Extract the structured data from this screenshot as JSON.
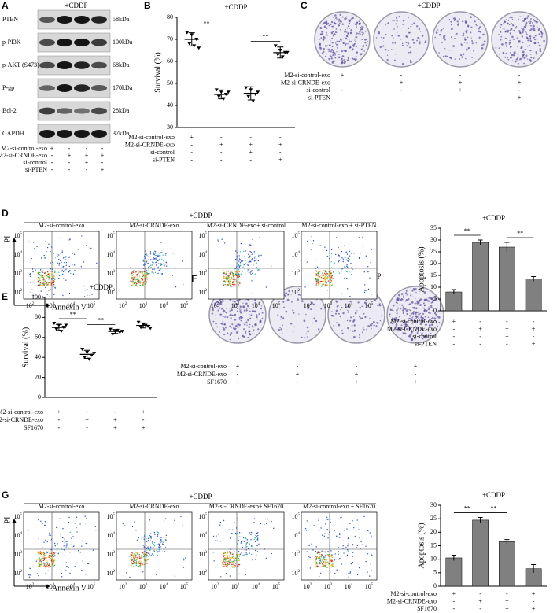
{
  "panel_letters": [
    "A",
    "B",
    "C",
    "D",
    "E",
    "F",
    "G"
  ],
  "condition": "+CDDP",
  "blot": {
    "proteins": [
      "PTEN",
      "p-PI3K",
      "p-AKT (S473)",
      "P-gp",
      "Bcl-2",
      "GAPDH"
    ],
    "sizes": [
      "58kDa",
      "100kDa",
      "68kDa",
      "170kDa",
      "28kDa",
      "37kDa"
    ]
  },
  "treatments_1": [
    {
      "name": "M2-si-control-exo",
      "signs": [
        "+",
        "-",
        "-",
        "-"
      ]
    },
    {
      "name": "M2-si-CRNDE-exo",
      "signs": [
        "-",
        "+",
        "+",
        "+"
      ]
    },
    {
      "name": "si-control",
      "signs": [
        "-",
        "-",
        "+",
        "-"
      ]
    },
    {
      "name": "si-PTEN",
      "signs": [
        "-",
        "-",
        "-",
        "+"
      ]
    }
  ],
  "treatments_2": [
    {
      "name": "M2-si-control-exo",
      "signs": [
        "+",
        "-",
        "-",
        "+"
      ]
    },
    {
      "name": "M2-si-CRNDE-exo",
      "signs": [
        "-",
        "+",
        "+",
        "-"
      ]
    },
    {
      "name": "SF1670",
      "signs": [
        "-",
        "-",
        "+",
        "+"
      ]
    }
  ],
  "flow": {
    "titles_1": [
      "M2-si-control-exo",
      "M2-si-CRNDE-exo",
      "M2-si-CRNDE-exo+ si-control",
      "M2-si-control-exo + si-PTEN"
    ],
    "titles_2": [
      "M2-si-control-exo",
      "M2-si-CRNDE-exo",
      "M2-si-CRNDE-exo+ SF1670",
      "M2-si-control-exo + SF1670"
    ],
    "y_label": "PI",
    "x_label": "Annexin V",
    "tick_base": "10",
    "tick_exponents": [
      "2",
      "3",
      "4",
      "5"
    ]
  },
  "chart_data": [
    {
      "type": "dot",
      "title": "+CDDP",
      "y_label": "Survival (%)",
      "ylim": [
        30,
        80
      ],
      "yticks": [
        30,
        40,
        50,
        60,
        70,
        80
      ],
      "points": [
        [
          73,
          72,
          70,
          68,
          67,
          66
        ],
        [
          47,
          46,
          45,
          44,
          43,
          46
        ],
        [
          48,
          47,
          45,
          44,
          42,
          46
        ],
        [
          67,
          65,
          64,
          63,
          62,
          64
        ]
      ],
      "means": [
        70,
        45,
        45.5,
        64
      ],
      "errors": [
        3,
        2,
        3,
        2.5
      ],
      "color": "#000000",
      "annotations": [
        "**",
        "**"
      ]
    },
    {
      "type": "bar",
      "title": "+CDDP",
      "y_label": "Apoptosis (%)",
      "ylim": [
        0,
        35
      ],
      "yticks": [
        0,
        5,
        10,
        15,
        20,
        25,
        30,
        35
      ],
      "values": [
        8,
        29,
        27,
        13.5
      ],
      "errors": [
        1,
        1,
        2,
        1
      ],
      "color": "#808080",
      "annotations": [
        "**",
        "**"
      ]
    },
    {
      "type": "dot",
      "title": "+CDDP",
      "y_label": "Survival (%)",
      "ylim": [
        0,
        100
      ],
      "yticks": [
        0,
        20,
        40,
        60,
        80,
        100
      ],
      "points": [
        [
          74,
          72,
          70,
          68,
          66,
          72
        ],
        [
          48,
          45,
          42,
          40,
          38,
          44
        ],
        [
          68,
          66,
          65,
          63,
          67,
          66
        ],
        [
          75,
          73,
          71,
          70,
          72,
          69
        ]
      ],
      "means": [
        70,
        43,
        66,
        72
      ],
      "errors": [
        3,
        4,
        2,
        2.5
      ],
      "color": "#000000",
      "annotations": [
        "**",
        "**"
      ]
    },
    {
      "type": "bar",
      "title": "+CDDP",
      "y_label": "Apoptosis (%)",
      "ylim": [
        0,
        30
      ],
      "yticks": [
        0,
        5,
        10,
        15,
        20,
        25,
        30
      ],
      "values": [
        10.5,
        24.5,
        16.5,
        6.5
      ],
      "errors": [
        1,
        1,
        0.8,
        1.5
      ],
      "color": "#808080",
      "annotations": [
        "**",
        "**"
      ]
    }
  ]
}
